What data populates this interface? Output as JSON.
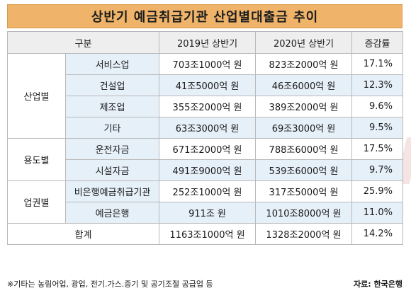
{
  "title": "상반기 예금취급기관 산업별대출금 추이",
  "header": {
    "category": "구분",
    "col_2019": "2019년 상반기",
    "col_2020": "2020년 상반기",
    "col_rate": "증감률"
  },
  "groups": {
    "industry": "산업별",
    "purpose": "용도별",
    "sector": "업권별"
  },
  "rows": [
    {
      "label": "서비스업",
      "v2019": "703조1000억 원",
      "v2020": "823조2000억 원",
      "rate": "17.1%"
    },
    {
      "label": "건설업",
      "v2019": "41조5000억 원",
      "v2020": "46조6000억 원",
      "rate": "12.3%"
    },
    {
      "label": "제조업",
      "v2019": "355조2000억 원",
      "v2020": "389조2000억 원",
      "rate": "9.6%"
    },
    {
      "label": "기타",
      "v2019": "63조3000억 원",
      "v2020": "69조3000억 원",
      "rate": "9.5%"
    },
    {
      "label": "운전자금",
      "v2019": "671조2000억 원",
      "v2020": "788조6000억 원",
      "rate": "17.5%"
    },
    {
      "label": "시설자금",
      "v2019": "491조9000억 원",
      "v2020": "539조6000억 원",
      "rate": "9.7%"
    },
    {
      "label": "비은행예금취급기관",
      "v2019": "252조1000억 원",
      "v2020": "317조5000억 원",
      "rate": "25.9%"
    },
    {
      "label": "예금은행",
      "v2019": "911조 원",
      "v2020": "1010조8000억 원",
      "rate": "11.0%"
    }
  ],
  "total": {
    "label": "합계",
    "v2019": "1163조1000억 원",
    "v2020": "1328조2000억 원",
    "rate": "14.2%"
  },
  "watermark": {
    "part1": "data",
    "part2": "news"
  },
  "footnote": "※기타는 농림어업, 광업, 전기.가스.증기 및 공기조절 공급업 등",
  "source": "자료: 한국은행",
  "colors": {
    "title_bg": "#efb46a",
    "shade": "#e6f0f9",
    "header_bg": "#eeeeee"
  }
}
